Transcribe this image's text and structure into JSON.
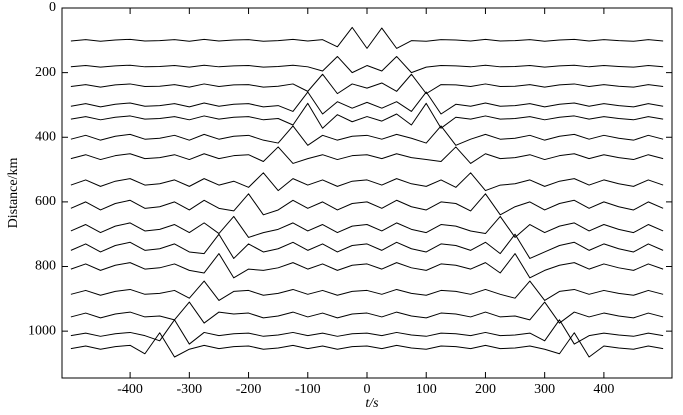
{
  "chart_data": {
    "type": "record-section",
    "x_label": "t/s",
    "y_label": "Distance/km",
    "xlim": [
      -515,
      515
    ],
    "ylim": [
      0,
      1145
    ],
    "y_inverted": true,
    "xticks": [
      -400,
      -300,
      -200,
      -100,
      0,
      100,
      200,
      300,
      400
    ],
    "yticks": [
      0,
      200,
      400,
      600,
      800,
      1000
    ],
    "x": [
      -500,
      -475,
      -450,
      -425,
      -400,
      -375,
      -350,
      -325,
      -300,
      -275,
      -250,
      -225,
      -200,
      -175,
      -150,
      -125,
      -100,
      -75,
      -50,
      -25,
      0,
      25,
      50,
      75,
      100,
      125,
      150,
      175,
      200,
      225,
      250,
      275,
      300,
      325,
      350,
      375,
      400,
      425,
      450,
      475,
      500
    ],
    "series": [
      {
        "color": "#000000",
        "values": [
          102,
          98,
          103,
          99,
          97,
          102,
          101,
          98,
          103,
          97,
          102,
          99,
          98,
          103,
          101,
          97,
          102,
          98,
          120,
          60,
          125,
          62,
          125,
          101,
          103,
          98,
          99,
          102,
          97,
          102,
          101,
          98,
          103,
          99,
          97,
          102,
          98,
          101,
          103,
          98,
          102
        ]
      },
      {
        "color": "#000000",
        "values": [
          182,
          178,
          183,
          179,
          177,
          182,
          181,
          178,
          183,
          177,
          182,
          179,
          178,
          183,
          181,
          177,
          182,
          195,
          150,
          200,
          178,
          195,
          150,
          200,
          183,
          178,
          179,
          182,
          177,
          182,
          181,
          178,
          183,
          179,
          177,
          182,
          178,
          181,
          183,
          178,
          182
        ]
      },
      {
        "color": "#000000",
        "values": [
          243,
          237,
          245,
          238,
          235,
          243,
          242,
          237,
          245,
          235,
          243,
          238,
          237,
          245,
          242,
          235,
          258,
          205,
          265,
          235,
          248,
          232,
          258,
          205,
          265,
          237,
          238,
          243,
          235,
          243,
          242,
          237,
          245,
          238,
          235,
          243,
          237,
          242,
          245,
          237,
          243
        ]
      },
      {
        "color": "#000000",
        "values": [
          304,
          296,
          306,
          298,
          294,
          304,
          302,
          296,
          306,
          294,
          304,
          298,
          296,
          306,
          302,
          320,
          260,
          328,
          290,
          310,
          292,
          310,
          290,
          320,
          260,
          328,
          298,
          304,
          294,
          304,
          302,
          296,
          306,
          298,
          294,
          304,
          296,
          302,
          306,
          296,
          304
        ]
      },
      {
        "color": "#000000",
        "values": [
          344,
          336,
          346,
          338,
          334,
          344,
          342,
          336,
          346,
          334,
          344,
          338,
          336,
          346,
          342,
          362,
          295,
          372,
          330,
          352,
          336,
          350,
          328,
          362,
          295,
          372,
          338,
          344,
          334,
          344,
          342,
          336,
          346,
          338,
          334,
          344,
          336,
          342,
          346,
          336,
          344
        ]
      },
      {
        "color": "#000000",
        "values": [
          406,
          394,
          409,
          397,
          391,
          406,
          403,
          394,
          409,
          391,
          406,
          397,
          394,
          409,
          418,
          365,
          425,
          394,
          409,
          397,
          394,
          406,
          391,
          403,
          418,
          365,
          425,
          406,
          391,
          406,
          403,
          394,
          409,
          397,
          391,
          406,
          394,
          403,
          409,
          394,
          406
        ]
      },
      {
        "color": "#000000",
        "values": [
          466,
          454,
          469,
          457,
          451,
          466,
          463,
          454,
          469,
          451,
          466,
          457,
          454,
          475,
          430,
          481,
          466,
          454,
          469,
          457,
          454,
          466,
          451,
          463,
          469,
          475,
          430,
          481,
          451,
          466,
          463,
          454,
          469,
          457,
          451,
          466,
          454,
          463,
          469,
          454,
          466
        ]
      },
      {
        "color": "#000000",
        "values": [
          548,
          532,
          552,
          536,
          528,
          548,
          544,
          532,
          552,
          528,
          548,
          536,
          555,
          510,
          565,
          528,
          548,
          532,
          552,
          536,
          532,
          548,
          528,
          544,
          552,
          532,
          555,
          510,
          565,
          548,
          544,
          532,
          552,
          536,
          528,
          548,
          532,
          544,
          552,
          532,
          548
        ]
      },
      {
        "color": "#000000",
        "values": [
          620,
          600,
          625,
          605,
          595,
          620,
          615,
          600,
          625,
          595,
          620,
          628,
          575,
          640,
          625,
          595,
          620,
          600,
          625,
          605,
          600,
          620,
          595,
          615,
          625,
          600,
          605,
          628,
          575,
          640,
          615,
          600,
          625,
          605,
          595,
          620,
          600,
          615,
          625,
          600,
          620
        ]
      },
      {
        "color": "#000000",
        "values": [
          690,
          670,
          695,
          675,
          665,
          690,
          685,
          670,
          695,
          665,
          698,
          645,
          710,
          695,
          685,
          665,
          690,
          670,
          695,
          675,
          670,
          690,
          665,
          685,
          695,
          670,
          675,
          690,
          698,
          645,
          710,
          670,
          695,
          675,
          665,
          690,
          670,
          685,
          695,
          670,
          690
        ]
      },
      {
        "color": "#000000",
        "values": [
          750,
          730,
          755,
          735,
          725,
          750,
          745,
          730,
          755,
          760,
          700,
          775,
          730,
          755,
          745,
          725,
          750,
          730,
          755,
          735,
          730,
          750,
          725,
          745,
          755,
          730,
          735,
          750,
          725,
          760,
          700,
          775,
          755,
          735,
          725,
          750,
          730,
          745,
          755,
          730,
          750
        ]
      },
      {
        "color": "#000000",
        "values": [
          808,
          792,
          812,
          796,
          788,
          808,
          804,
          792,
          812,
          820,
          760,
          835,
          808,
          812,
          804,
          788,
          808,
          792,
          812,
          796,
          792,
          808,
          788,
          804,
          812,
          792,
          796,
          808,
          788,
          820,
          760,
          835,
          812,
          796,
          788,
          808,
          792,
          804,
          812,
          792,
          808
        ]
      },
      {
        "color": "#000000",
        "values": [
          886,
          874,
          889,
          877,
          871,
          886,
          883,
          874,
          898,
          845,
          905,
          877,
          874,
          889,
          883,
          871,
          886,
          874,
          889,
          877,
          874,
          886,
          871,
          883,
          889,
          874,
          877,
          886,
          871,
          886,
          898,
          845,
          905,
          877,
          871,
          886,
          874,
          883,
          889,
          874,
          886
        ]
      },
      {
        "color": "#000000",
        "values": [
          956,
          944,
          959,
          947,
          941,
          956,
          953,
          965,
          910,
          975,
          941,
          947,
          944,
          959,
          953,
          941,
          956,
          944,
          959,
          947,
          944,
          956,
          941,
          953,
          959,
          944,
          947,
          956,
          941,
          956,
          953,
          965,
          910,
          975,
          941,
          956,
          944,
          953,
          959,
          944,
          956
        ]
      },
      {
        "color": "#000000",
        "values": [
          1014,
          1006,
          1016,
          1008,
          1004,
          1014,
          1030,
          965,
          1040,
          1004,
          1014,
          1008,
          1006,
          1016,
          1012,
          1004,
          1014,
          1006,
          1016,
          1008,
          1006,
          1014,
          1004,
          1012,
          1016,
          1006,
          1008,
          1014,
          1004,
          1014,
          1012,
          1006,
          1030,
          965,
          1040,
          1014,
          1006,
          1012,
          1016,
          1006,
          1014
        ]
      },
      {
        "color": "#000000",
        "values": [
          1054,
          1046,
          1056,
          1048,
          1044,
          1070,
          1005,
          1080,
          1056,
          1044,
          1054,
          1048,
          1046,
          1056,
          1052,
          1044,
          1054,
          1046,
          1056,
          1048,
          1046,
          1054,
          1044,
          1052,
          1056,
          1046,
          1048,
          1054,
          1044,
          1054,
          1052,
          1046,
          1056,
          1070,
          1005,
          1080,
          1046,
          1052,
          1056,
          1046,
          1054
        ]
      }
    ]
  }
}
